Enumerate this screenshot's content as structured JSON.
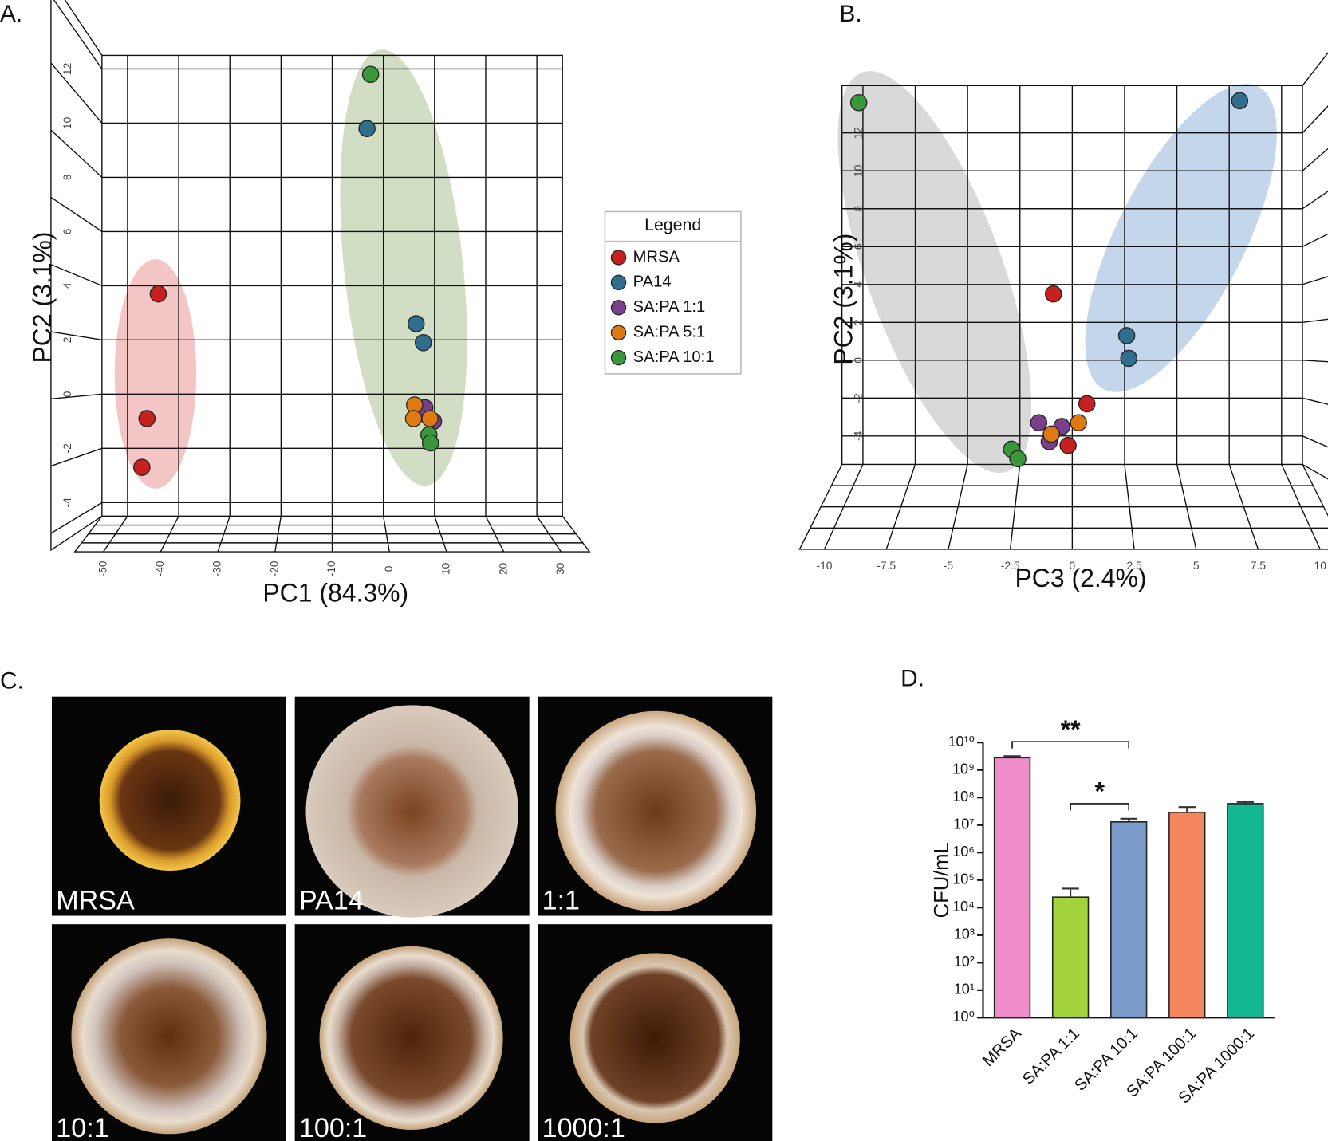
{
  "chart_data": [
    {
      "type": "scatter",
      "label": "A.",
      "x_label": "PC1 (84.3%)",
      "y_label": "PC2 (3.1%)",
      "xlim": [
        -55,
        35
      ],
      "ylim": [
        -4.5,
        12.5
      ],
      "xticks": [
        -50,
        -40,
        -30,
        -20,
        -10,
        0,
        10,
        20,
        30
      ],
      "yticks": [
        -4,
        -2,
        0,
        2,
        4,
        6,
        8,
        10,
        12
      ],
      "legend_title": "Legend",
      "series": [
        {
          "name": "MRSA",
          "color": "#c8201e",
          "x": [
            -44.0,
            -46.2,
            -47.2
          ],
          "y": [
            3.7,
            -0.9,
            -2.7
          ]
        },
        {
          "name": "PA14",
          "color": "#2f6e8c",
          "x": [
            -3.2,
            6.4,
            7.8
          ],
          "y": [
            9.8,
            2.6,
            1.9
          ]
        },
        {
          "name": "SA:PA 1:1",
          "color": "#7a3f8a",
          "x": [
            8.1,
            9.8
          ],
          "y": [
            -0.5,
            -1.0
          ]
        },
        {
          "name": "SA:PA 5:1",
          "color": "#df7a12",
          "x": [
            6.1,
            5.9,
            9.1
          ],
          "y": [
            -0.4,
            -0.9,
            -0.9
          ]
        },
        {
          "name": "SA:PA 10:1",
          "color": "#3a983a",
          "x": [
            -2.5,
            8.9,
            9.2
          ],
          "y": [
            11.8,
            -1.5,
            -1.8
          ]
        }
      ]
    },
    {
      "type": "scatter",
      "label": "B.",
      "x_label": "PC3 (2.4%)",
      "y_label": "PC2 (3.1%)",
      "xlim": [
        -11,
        11
      ],
      "ylim": [
        -5.5,
        14.5
      ],
      "xticks": [
        -10,
        -7.5,
        -5,
        -2.5,
        0,
        2.5,
        5,
        7.5,
        10
      ],
      "yticks": [
        -4,
        -2,
        0,
        2,
        4,
        6,
        8,
        10,
        12
      ],
      "series": [
        {
          "color": "#c8201e",
          "x": [
            -0.9,
            0.7,
            -0.2
          ],
          "y": [
            3.5,
            -2.3,
            -4.5
          ]
        },
        {
          "color": "#2f6e8c",
          "x": [
            8.0,
            2.6,
            2.7
          ],
          "y": [
            13.7,
            1.3,
            0.1
          ]
        },
        {
          "color": "#7a3f8a",
          "x": [
            -1.6,
            -0.5,
            -1.1
          ],
          "y": [
            -3.3,
            -3.5,
            -4.3
          ]
        },
        {
          "color": "#df7a12",
          "x": [
            -1.0,
            0.3
          ],
          "y": [
            -3.9,
            -3.3
          ]
        },
        {
          "color": "#3a983a",
          "x": [
            -10.2,
            -2.9,
            -2.6
          ],
          "y": [
            13.6,
            -4.7,
            -5.2
          ]
        }
      ]
    },
    {
      "type": "bar",
      "label": "D.",
      "y_label": "CFU/mL",
      "log_scale": true,
      "categories": [
        "MRSA",
        "SA:PA 1:1",
        "SA:PA 10:1",
        "SA:PA 100:1",
        "SA:PA 1000:1"
      ],
      "values": [
        2800000000,
        24000,
        13000000,
        29000000,
        60000000
      ],
      "errors": [
        400000000,
        25000,
        4000000,
        16000000,
        9000000
      ],
      "colors": [
        "#ef8cca",
        "#a4d43c",
        "#7b9bcb",
        "#f5875e",
        "#14b894"
      ],
      "ylim": [
        1,
        10000000000
      ],
      "yticks": [
        {
          "value": 1,
          "label": "10⁰"
        },
        {
          "value": 10,
          "label": "10¹"
        },
        {
          "value": 100,
          "label": "10²"
        },
        {
          "value": 1000,
          "label": "10³"
        },
        {
          "value": 10000,
          "label": "10⁴"
        },
        {
          "value": 100000,
          "label": "10⁵"
        },
        {
          "value": 1000000,
          "label": "10⁶"
        },
        {
          "value": 10000000,
          "label": "10⁷"
        },
        {
          "value": 100000000,
          "label": "10⁸"
        },
        {
          "value": 1000000000,
          "label": "10⁹"
        },
        {
          "value": 10000000000,
          "label": "10¹⁰"
        }
      ],
      "annotations": [
        "**",
        "*"
      ]
    }
  ],
  "panel_c": {
    "label": "C.",
    "images": [
      "MRSA",
      "PA14",
      "1:1",
      "10:1",
      "100:1",
      "1000:1"
    ]
  }
}
